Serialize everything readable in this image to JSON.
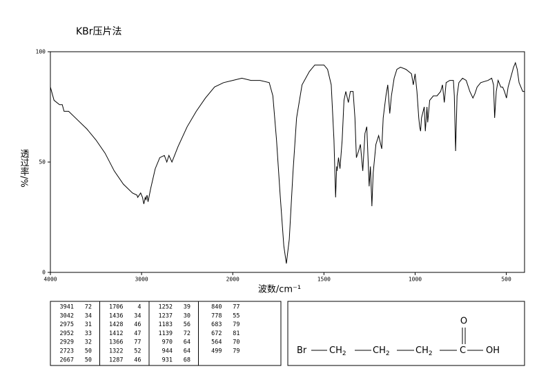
{
  "chart_data": {
    "type": "line",
    "title": "KBr压片法",
    "x_label": "波数/cm⁻¹",
    "y_label": "透过率/%",
    "xlim": [
      4000,
      400
    ],
    "ylim": [
      0,
      100
    ],
    "xticks": [
      4000,
      3000,
      2000,
      1500,
      1000,
      500
    ],
    "yticks": [
      0,
      50,
      100
    ],
    "color": "#000000",
    "x": [
      4000,
      3960,
      3900,
      3870,
      3850,
      3800,
      3700,
      3600,
      3500,
      3400,
      3300,
      3200,
      3100,
      3050,
      3042,
      3010,
      2990,
      2975,
      2960,
      2952,
      2940,
      2929,
      2900,
      2850,
      2800,
      2750,
      2723,
      2700,
      2667,
      2600,
      2500,
      2400,
      2300,
      2200,
      2100,
      2000,
      1950,
      1900,
      1850,
      1800,
      1780,
      1760,
      1740,
      1720,
      1706,
      1690,
      1670,
      1650,
      1620,
      1580,
      1550,
      1500,
      1480,
      1460,
      1445,
      1436,
      1430,
      1428,
      1420,
      1412,
      1400,
      1390,
      1380,
      1366,
      1355,
      1340,
      1330,
      1322,
      1310,
      1300,
      1287,
      1275,
      1265,
      1252,
      1245,
      1237,
      1230,
      1215,
      1200,
      1183,
      1175,
      1160,
      1150,
      1139,
      1130,
      1115,
      1100,
      1080,
      1050,
      1020,
      1010,
      1000,
      990,
      980,
      975,
      970,
      965,
      950,
      944,
      935,
      931,
      920,
      900,
      880,
      860,
      850,
      840,
      830,
      810,
      790,
      785,
      778,
      770,
      760,
      740,
      720,
      700,
      683,
      672,
      660,
      640,
      600,
      580,
      570,
      564,
      555,
      545,
      530,
      520,
      510,
      499,
      490,
      470,
      460,
      450,
      440,
      430,
      420,
      410,
      400
    ],
    "values": [
      84,
      78,
      76,
      76,
      73,
      73,
      69,
      65,
      60,
      54,
      46,
      40,
      36,
      35,
      34,
      36,
      34,
      31,
      34,
      33,
      35,
      32,
      38,
      47,
      52,
      53,
      50,
      53,
      50,
      57,
      66,
      73,
      79,
      84,
      86,
      87,
      88,
      87,
      87,
      86,
      80,
      60,
      35,
      12,
      4,
      15,
      45,
      70,
      85,
      91,
      94,
      94,
      92,
      85,
      60,
      34,
      48,
      46,
      52,
      47,
      60,
      78,
      82,
      77,
      82,
      82,
      70,
      52,
      55,
      58,
      46,
      63,
      66,
      39,
      48,
      30,
      45,
      58,
      62,
      56,
      70,
      80,
      85,
      72,
      80,
      88,
      92,
      93,
      92,
      90,
      85,
      90,
      82,
      70,
      66,
      64,
      70,
      75,
      64,
      75,
      68,
      78,
      80,
      80,
      82,
      85,
      77,
      86,
      87,
      87,
      80,
      55,
      80,
      86,
      88,
      87,
      82,
      79,
      81,
      84,
      86,
      87,
      88,
      85,
      70,
      82,
      87,
      84,
      84,
      82,
      79,
      84,
      90,
      93,
      95,
      92,
      86,
      84,
      82,
      82
    ]
  },
  "peak_table": [
    [
      [
        3941,
        72
      ],
      [
        3042,
        34
      ],
      [
        2975,
        31
      ],
      [
        2952,
        33
      ],
      [
        2929,
        32
      ],
      [
        2723,
        50
      ],
      [
        2667,
        50
      ]
    ],
    [
      [
        1706,
        4
      ],
      [
        1436,
        34
      ],
      [
        1428,
        46
      ],
      [
        1412,
        47
      ],
      [
        1366,
        77
      ],
      [
        1322,
        52
      ],
      [
        1287,
        46
      ]
    ],
    [
      [
        1252,
        39
      ],
      [
        1237,
        30
      ],
      [
        1183,
        56
      ],
      [
        1139,
        72
      ],
      [
        970,
        64
      ],
      [
        944,
        64
      ],
      [
        931,
        68
      ]
    ],
    [
      [
        840,
        77
      ],
      [
        778,
        55
      ],
      [
        683,
        79
      ],
      [
        672,
        81
      ],
      [
        564,
        70
      ],
      [
        499,
        79
      ]
    ]
  ],
  "structure": {
    "groups": [
      {
        "text": "Br"
      },
      {
        "text": "CH",
        "sub": "2"
      },
      {
        "text": "CH",
        "sub": "2"
      },
      {
        "text": "CH",
        "sub": "2"
      },
      {
        "text": "C"
      },
      {
        "text": "OH"
      }
    ],
    "carbonyl": "O"
  }
}
